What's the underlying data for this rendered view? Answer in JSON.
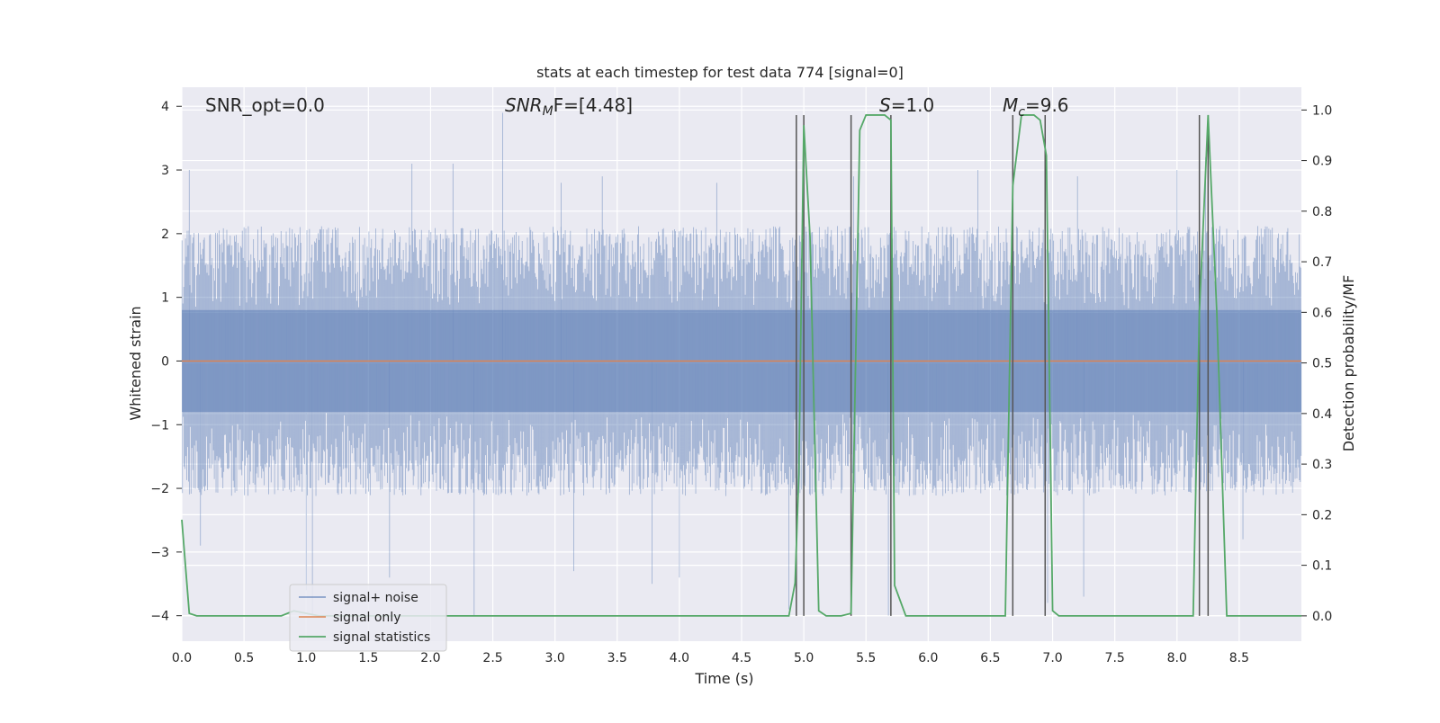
{
  "chart_data": {
    "type": "line",
    "title": "stats at each timestep for test data 774 [signal=0]",
    "xlabel": "Time (s)",
    "ylabel_left": "Whitened strain",
    "ylabel_right": "Detection probability/MF",
    "xlim": [
      0.0,
      9.0
    ],
    "ylim_left": [
      -4.4,
      4.3
    ],
    "ylim_right": [
      -0.05,
      1.045
    ],
    "x_ticks": [
      "0.0",
      "0.5",
      "1.0",
      "1.5",
      "2.0",
      "2.5",
      "3.0",
      "3.5",
      "4.0",
      "4.5",
      "5.0",
      "5.5",
      "6.0",
      "6.5",
      "7.0",
      "7.5",
      "8.0",
      "8.5"
    ],
    "y_ticks_left": [
      "−4",
      "−3",
      "−2",
      "−1",
      "0",
      "1",
      "2",
      "3",
      "4"
    ],
    "y_ticks_right": [
      "0.0",
      "0.1",
      "0.2",
      "0.3",
      "0.4",
      "0.5",
      "0.6",
      "0.7",
      "0.8",
      "0.9",
      "1.0"
    ],
    "grid": true,
    "legend_position": "lower-left",
    "annotations": [
      "SNR_opt=0.0",
      "SNR",
      "M",
      "F=[4.48]",
      "S",
      "=1.0",
      "M",
      "c",
      "=9.6"
    ],
    "series": [
      {
        "name": "signal+ noise",
        "color": "#4c72b0",
        "kind": "noise band",
        "values": {
          "typical_range": [
            -2.0,
            2.0
          ],
          "dense_range": [
            -0.8,
            0.8
          ],
          "spikes": [
            [
              0.06,
              3.0
            ],
            [
              1.85,
              3.1
            ],
            [
              2.18,
              3.1
            ],
            [
              2.58,
              3.9
            ],
            [
              3.05,
              2.8
            ],
            [
              3.38,
              2.9
            ],
            [
              4.3,
              2.8
            ],
            [
              5.0,
              3.0
            ],
            [
              5.4,
              2.9
            ],
            [
              6.4,
              3.0
            ],
            [
              7.2,
              2.9
            ],
            [
              8.0,
              3.0
            ],
            [
              8.23,
              3.2
            ],
            [
              0.15,
              -2.9
            ],
            [
              1.0,
              -3.6
            ],
            [
              1.05,
              -4.0
            ],
            [
              1.67,
              -3.4
            ],
            [
              2.35,
              -4.0
            ],
            [
              3.15,
              -3.3
            ],
            [
              3.78,
              -3.5
            ],
            [
              4.0,
              -3.4
            ],
            [
              4.88,
              -3.9
            ],
            [
              5.68,
              -4.0
            ],
            [
              6.96,
              -3.8
            ],
            [
              7.25,
              -3.7
            ],
            [
              8.25,
              -3.5
            ],
            [
              8.53,
              -2.8
            ]
          ]
        }
      },
      {
        "name": "signal only",
        "color": "#dd8452",
        "kind": "flat line",
        "values": {
          "x": [
            0.0,
            9.0
          ],
          "y": [
            0.0,
            0.0
          ]
        }
      },
      {
        "name": "signal statistics",
        "color": "#55a868",
        "axis": "right",
        "x": [
          0.0,
          0.06,
          0.12,
          0.8,
          0.85,
          0.9,
          1.1,
          4.88,
          4.93,
          4.96,
          5.0,
          5.05,
          5.12,
          5.18,
          5.3,
          5.38,
          5.45,
          5.5,
          5.65,
          5.7,
          5.73,
          5.82,
          6.62,
          6.68,
          6.75,
          6.85,
          6.9,
          6.95,
          7.0,
          7.05,
          8.13,
          8.18,
          8.25,
          8.32,
          8.4,
          9.0
        ],
        "y": [
          0.19,
          0.005,
          0.0,
          0.0,
          0.005,
          0.01,
          0.0,
          0.0,
          0.065,
          0.28,
          0.97,
          0.75,
          0.01,
          0.0,
          0.0,
          0.005,
          0.96,
          0.99,
          0.99,
          0.98,
          0.06,
          0.0,
          0.0,
          0.85,
          0.99,
          0.99,
          0.98,
          0.91,
          0.01,
          0.0,
          0.0,
          0.6,
          0.99,
          0.6,
          0.0,
          0.0
        ]
      }
    ],
    "vertical_markers": [
      4.94,
      5.0,
      5.38,
      5.7,
      6.68,
      6.94,
      8.18,
      8.25
    ]
  }
}
